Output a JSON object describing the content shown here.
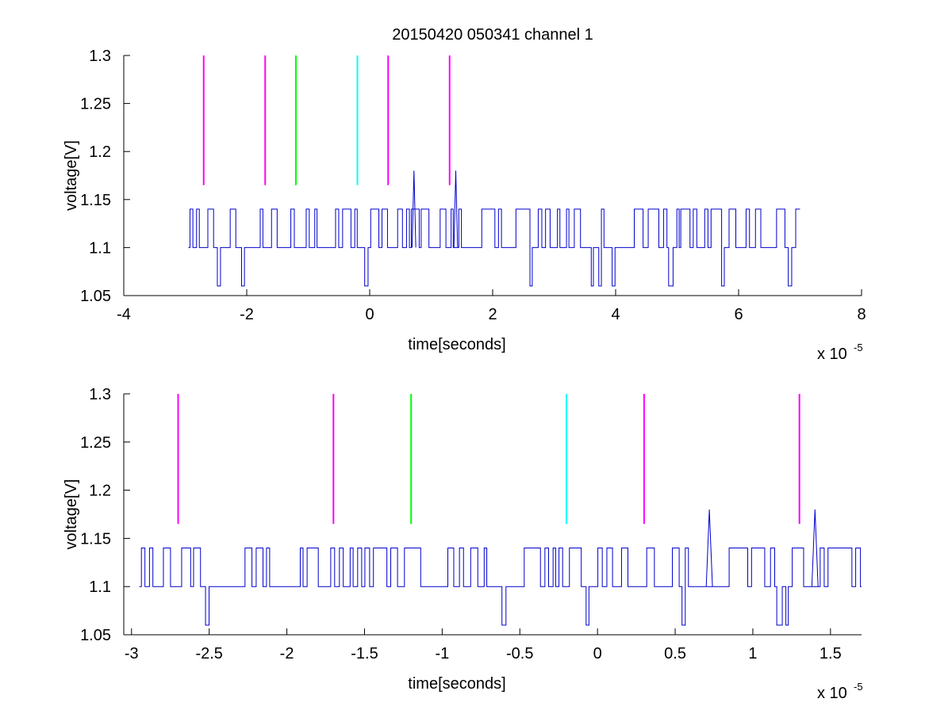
{
  "chart_data": [
    {
      "type": "line",
      "title": "20150420 050341 channel 1",
      "xlabel": "time[seconds]",
      "ylabel": "voltage[V]",
      "x_exponent_label": "x 10",
      "x_exponent_power": "-5",
      "xlim": [
        -4,
        8
      ],
      "ylim": [
        1.05,
        1.3
      ],
      "xticks": [
        -4,
        -2,
        0,
        2,
        4,
        6,
        8
      ],
      "xtick_labels": [
        "-4",
        "-2",
        "0",
        "2",
        "4",
        "6",
        "8"
      ],
      "yticks": [
        1.05,
        1.1,
        1.15,
        1.2,
        1.25,
        1.3
      ],
      "ytick_labels": [
        "1.05",
        "1.1",
        "1.15",
        "1.2",
        "1.25",
        "1.3"
      ],
      "grid": false,
      "series": [
        {
          "color": "#0000cc",
          "x_range": [
            -2.95,
            7.0
          ],
          "baseline": 1.1,
          "high_level": 1.14,
          "low_level": 1.06,
          "spikes": [
            {
              "x": 0.72,
              "y": 1.18
            },
            {
              "x": 1.4,
              "y": 1.18
            }
          ]
        }
      ],
      "markers": [
        {
          "x": -2.7,
          "y_range": [
            1.165,
            1.3
          ],
          "color": "#ff00ff"
        },
        {
          "x": -1.7,
          "y_range": [
            1.165,
            1.3
          ],
          "color": "#ff00ff"
        },
        {
          "x": -1.2,
          "y_range": [
            1.165,
            1.3
          ],
          "color": "#00ff00"
        },
        {
          "x": -0.2,
          "y_range": [
            1.165,
            1.3
          ],
          "color": "#00ffff"
        },
        {
          "x": 0.3,
          "y_range": [
            1.165,
            1.3
          ],
          "color": "#ff00ff"
        },
        {
          "x": 1.3,
          "y_range": [
            1.165,
            1.3
          ],
          "color": "#ff00ff"
        }
      ]
    },
    {
      "type": "line",
      "title": "",
      "xlabel": "time[seconds]",
      "ylabel": "voltage[V]",
      "x_exponent_label": "x 10",
      "x_exponent_power": "-5",
      "xlim": [
        -3.05,
        1.7
      ],
      "ylim": [
        1.05,
        1.3
      ],
      "xticks": [
        -3,
        -2.5,
        -2,
        -1.5,
        -1,
        -0.5,
        0,
        0.5,
        1,
        1.5
      ],
      "xtick_labels": [
        "-3",
        "-2.5",
        "-2",
        "-1.5",
        "-1",
        "-0.5",
        "0",
        "0.5",
        "1",
        "1.5"
      ],
      "yticks": [
        1.05,
        1.1,
        1.15,
        1.2,
        1.25,
        1.3
      ],
      "ytick_labels": [
        "1.05",
        "1.1",
        "1.15",
        "1.2",
        "1.25",
        "1.3"
      ],
      "grid": false,
      "series": [
        {
          "color": "#0000cc",
          "x_range": [
            -2.95,
            1.7
          ],
          "baseline": 1.1,
          "high_level": 1.14,
          "low_level": 1.06,
          "spikes": [
            {
              "x": 0.72,
              "y": 1.18
            },
            {
              "x": 1.4,
              "y": 1.18
            }
          ]
        }
      ],
      "markers": [
        {
          "x": -2.7,
          "y_range": [
            1.165,
            1.3
          ],
          "color": "#ff00ff"
        },
        {
          "x": -1.7,
          "y_range": [
            1.165,
            1.3
          ],
          "color": "#ff00ff"
        },
        {
          "x": -1.2,
          "y_range": [
            1.165,
            1.3
          ],
          "color": "#00ff00"
        },
        {
          "x": -0.2,
          "y_range": [
            1.165,
            1.3
          ],
          "color": "#00ffff"
        },
        {
          "x": 0.3,
          "y_range": [
            1.165,
            1.3
          ],
          "color": "#ff00ff"
        },
        {
          "x": 1.3,
          "y_range": [
            1.165,
            1.3
          ],
          "color": "#ff00ff"
        }
      ]
    }
  ]
}
